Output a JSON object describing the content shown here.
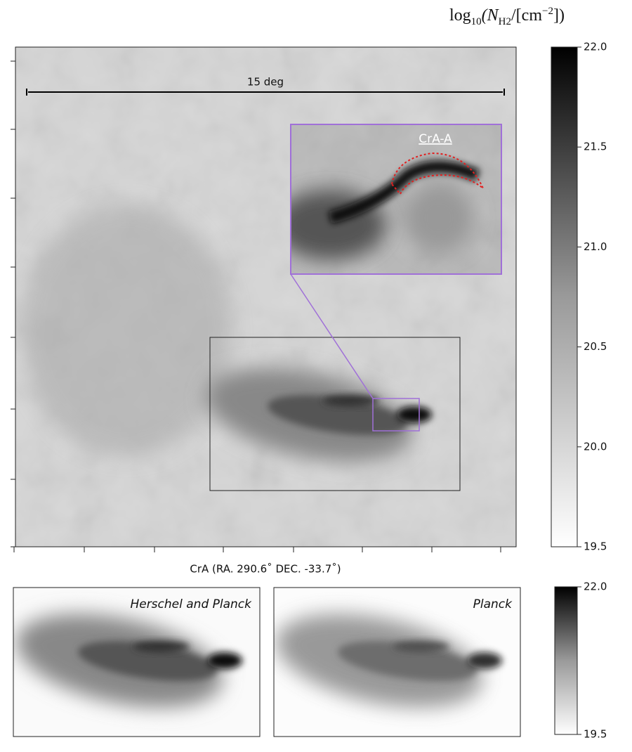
{
  "colorbar": {
    "label": {
      "prefix": "log",
      "sub": "10",
      "open": "(N",
      "sub2": "H2",
      "mid": "/[cm",
      "sup": "−2",
      "close": "])"
    },
    "lim": [
      19.5,
      22.0
    ],
    "ticks": [
      19.5,
      {
        "value": 20.0,
        "label": "20.0"
      },
      20.5,
      {
        "value": 21.0,
        "label": "21.0"
      },
      21.5,
      {
        "value": 22.0,
        "label": "22.0"
      }
    ]
  },
  "main_panel": {
    "scale_bar": "15 deg",
    "inset_label": "CrA-A",
    "xlabel": "CrA (RA. 290.6˚ DEC. -33.7˚)"
  },
  "bottom_panels": [
    {
      "title": "Herschel and Planck"
    },
    {
      "title": "Planck"
    }
  ],
  "colorbar_small": {
    "lim": [
      19.5,
      22.0
    ],
    "ticks": [
      19.5,
      {
        "value": 22.0,
        "label": "22.0"
      }
    ]
  }
}
